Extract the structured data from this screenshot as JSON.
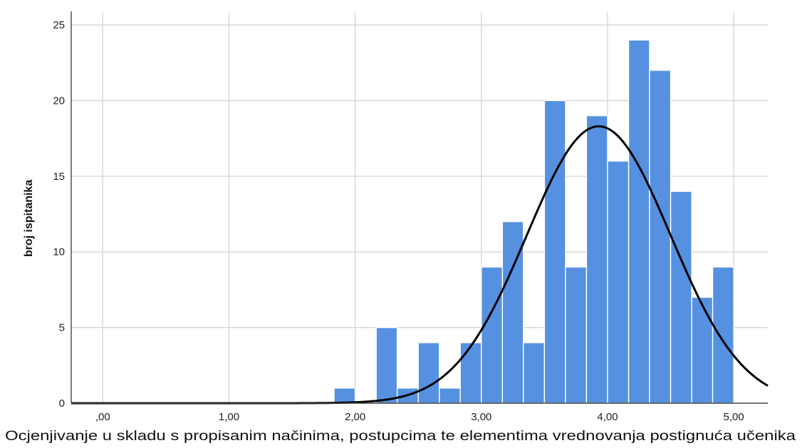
{
  "chart_data": {
    "type": "bar",
    "title": "",
    "xlabel": "Ocjenjivanje u skladu s propisanim načinima, postupcima te elementima vrednovanja postignuća učenika",
    "ylabel": "broj ispitanika",
    "xlim": [
      -0.25,
      5.27
    ],
    "ylim": [
      0,
      25.8
    ],
    "x_ticks": [
      0,
      1,
      2,
      3,
      4,
      5
    ],
    "x_tick_labels": [
      ",00",
      "1,00",
      "2,00",
      "3,00",
      "4,00",
      "5,00"
    ],
    "y_ticks": [
      0,
      5,
      10,
      15,
      20,
      25
    ],
    "y_tick_labels": [
      "0",
      "5",
      "10",
      "15",
      "20",
      "25"
    ],
    "grid": true,
    "bar_color": "#5591e0",
    "bins": [
      {
        "x0": 1.833,
        "x1": 2.0,
        "count": 1
      },
      {
        "x0": 2.167,
        "x1": 2.333,
        "count": 5
      },
      {
        "x0": 2.333,
        "x1": 2.5,
        "count": 1
      },
      {
        "x0": 2.5,
        "x1": 2.667,
        "count": 4
      },
      {
        "x0": 2.667,
        "x1": 2.833,
        "count": 1
      },
      {
        "x0": 2.833,
        "x1": 3.0,
        "count": 4
      },
      {
        "x0": 3.0,
        "x1": 3.167,
        "count": 9
      },
      {
        "x0": 3.167,
        "x1": 3.333,
        "count": 12
      },
      {
        "x0": 3.333,
        "x1": 3.5,
        "count": 4
      },
      {
        "x0": 3.5,
        "x1": 3.667,
        "count": 20
      },
      {
        "x0": 3.667,
        "x1": 3.833,
        "count": 9
      },
      {
        "x0": 3.833,
        "x1": 4.0,
        "count": 19
      },
      {
        "x0": 4.0,
        "x1": 4.167,
        "count": 16
      },
      {
        "x0": 4.167,
        "x1": 4.333,
        "count": 24
      },
      {
        "x0": 4.333,
        "x1": 4.5,
        "count": 22
      },
      {
        "x0": 4.5,
        "x1": 4.667,
        "count": 14
      },
      {
        "x0": 4.667,
        "x1": 4.833,
        "count": 7
      },
      {
        "x0": 4.833,
        "x1": 5.0,
        "count": 9
      }
    ],
    "normal_curve": {
      "mean": 3.93,
      "sd": 0.57,
      "peak": 18.3,
      "color": "#000000"
    }
  }
}
